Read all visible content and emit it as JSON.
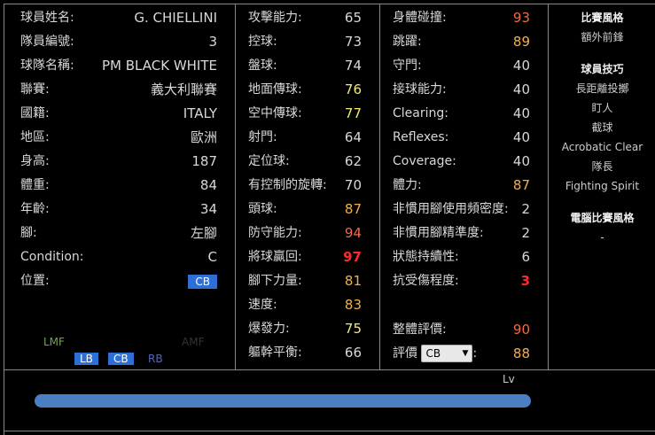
{
  "col1": [
    {
      "label": "球員姓名:",
      "value": "G. CHIELLINI"
    },
    {
      "label": "隊員編號:",
      "value": "3"
    },
    {
      "label": "球隊名稱:",
      "value": "PM BLACK WHITE"
    },
    {
      "label": "聯賽:",
      "value": "義大利聯賽"
    },
    {
      "label": "國籍:",
      "value": "ITALY"
    },
    {
      "label": "地區:",
      "value": "歐洲"
    },
    {
      "label": "身高:",
      "value": "187"
    },
    {
      "label": "體重:",
      "value": "84"
    },
    {
      "label": "年齡:",
      "value": "34"
    },
    {
      "label": "腳:",
      "value": "左腳"
    },
    {
      "label": "Condition:",
      "value": "C"
    },
    {
      "label": "位置:",
      "value": "CB"
    }
  ],
  "col2": [
    {
      "label": "攻擊能力:",
      "value": "65",
      "color": "#d8d8d8"
    },
    {
      "label": "控球:",
      "value": "73",
      "color": "#d8d8d8"
    },
    {
      "label": "盤球:",
      "value": "74",
      "color": "#d8d8d8"
    },
    {
      "label": "地面傳球:",
      "value": "76",
      "color": "#f3ea74"
    },
    {
      "label": "空中傳球:",
      "value": "77",
      "color": "#f3ea74"
    },
    {
      "label": "射門:",
      "value": "64",
      "color": "#d8d8d8"
    },
    {
      "label": "定位球:",
      "value": "62",
      "color": "#d8d8d8"
    },
    {
      "label": "有控制的旋轉:",
      "value": "70",
      "color": "#d8d8d8"
    },
    {
      "label": "頭球:",
      "value": "87",
      "color": "#f0b050"
    },
    {
      "label": "防守能力:",
      "value": "94",
      "color": "#f06a45"
    },
    {
      "label": "將球贏回:",
      "value": "97",
      "color": "#ff2a2a"
    },
    {
      "label": "腳下力量:",
      "value": "81",
      "color": "#f0b050"
    },
    {
      "label": "速度:",
      "value": "83",
      "color": "#f0b050"
    },
    {
      "label": "爆發力:",
      "value": "75",
      "color": "#f3ea74"
    },
    {
      "label": "軀幹平衡:",
      "value": "66",
      "color": "#d8d8d8"
    }
  ],
  "col3": [
    {
      "label": "身體碰撞:",
      "value": "93",
      "color": "#f06a45"
    },
    {
      "label": "跳躍:",
      "value": "89",
      "color": "#f0b050"
    },
    {
      "label": "守門:",
      "value": "40",
      "color": "#d8d8d8"
    },
    {
      "label": "接球能力:",
      "value": "40",
      "color": "#d8d8d8"
    },
    {
      "label": "Clearing:",
      "value": "40",
      "color": "#d8d8d8"
    },
    {
      "label": "Reflexes:",
      "value": "40",
      "color": "#d8d8d8"
    },
    {
      "label": "Coverage:",
      "value": "40",
      "color": "#d8d8d8"
    },
    {
      "label": "體力:",
      "value": "87",
      "color": "#f0b050"
    },
    {
      "label": "非慣用腳使用頻密度:",
      "value": "2",
      "color": "#d8d8d8"
    },
    {
      "label": "非慣用腳精準度:",
      "value": "2",
      "color": "#d8d8d8"
    },
    {
      "label": "狀態持續性:",
      "value": "6",
      "color": "#d8d8d8"
    },
    {
      "label": "抗受傷程度:",
      "value": "3",
      "color": "#ff2a2a"
    }
  ],
  "overall": {
    "label": "整體評價:",
    "value": "90",
    "color": "#f06a45"
  },
  "rating": {
    "label": "評價",
    "select": "CB",
    "suffix": ":",
    "value": "88",
    "color": "#f0b050"
  },
  "col4": {
    "style_title": "比賽風格",
    "style": "額外前鋒",
    "skills_title": "球員技巧",
    "skills": [
      "長距離投擲",
      "盯人",
      "截球",
      "Acrobatic Clear",
      "隊長",
      "Fighting Spirit"
    ],
    "ai_title": "電腦比賽風格",
    "ai": "-"
  },
  "positions": {
    "lmf": "LMF",
    "amf": "AMF",
    "lb": "LB",
    "cb": "CB",
    "rb": "RB"
  },
  "level_label": "Lv",
  "accent": "#2e6fd6"
}
